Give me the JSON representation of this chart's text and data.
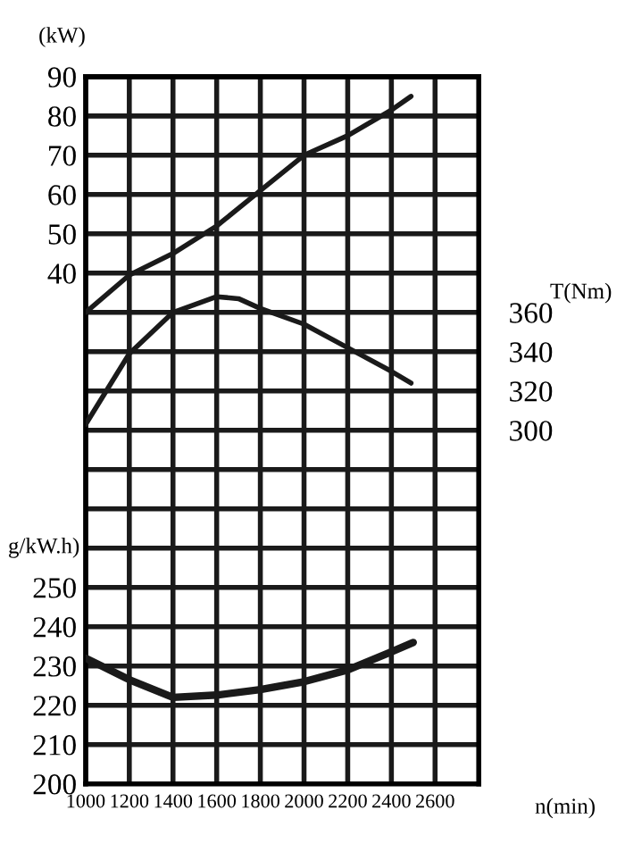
{
  "chart_data": {
    "type": "line",
    "xlabel": "n(min)",
    "ylabel": "(kW)",
    "y2label": "T(Nm)",
    "y3label": "g/kW.h)",
    "x": [
      1000,
      1200,
      1400,
      1600,
      1800,
      2000,
      2200,
      2400,
      2490
    ],
    "series": [
      {
        "color": "#1a1a1a",
        "axis": "y",
        "values": [
          30,
          39.5,
          45,
          52,
          61,
          70,
          75,
          81.5,
          85
        ]
      },
      {
        "color": "#1a1a1a",
        "axis": "y2",
        "x": [
          1000,
          1200,
          1400,
          1600,
          1700,
          1800,
          2000,
          2200,
          2400,
          2490
        ],
        "values": [
          303,
          339,
          360,
          368,
          367,
          362,
          354,
          342,
          330,
          324
        ]
      },
      {
        "color": "#1a1a1a",
        "axis": "y3",
        "x": [
          1000,
          1200,
          1400,
          1600,
          1800,
          2000,
          2200,
          2400,
          2500
        ],
        "values": [
          232,
          226.5,
          222,
          222.6,
          224,
          226,
          229,
          233.6,
          236
        ]
      }
    ],
    "xlim": [
      1000,
      2800
    ],
    "xticks": [
      1000,
      1200,
      1400,
      1600,
      1800,
      2000,
      2200,
      2400,
      2600
    ],
    "ylim": [
      -90,
      90
    ],
    "yticks": [
      40,
      50,
      60,
      70,
      80,
      90
    ],
    "y2lim": [
      120,
      480
    ],
    "y2ticks": [
      300,
      320,
      340,
      360
    ],
    "y3lim": [
      200,
      380
    ],
    "y3ticks": [
      200,
      210,
      220,
      230,
      240,
      250
    ],
    "grid": true,
    "legend": false,
    "marker": "none",
    "line_style": "solid"
  }
}
